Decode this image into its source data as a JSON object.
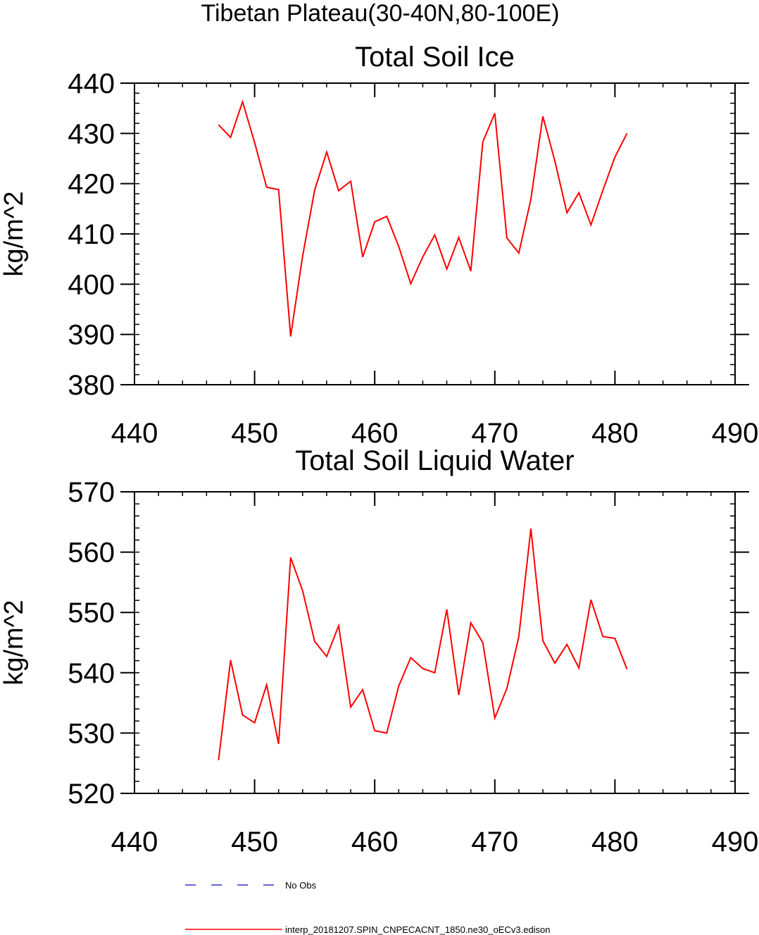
{
  "figure": {
    "suptitle": "Tibetan Plateau(30-40N,80-100E)"
  },
  "legend": {
    "entries": [
      {
        "label": "No Obs",
        "color": "#3333cc",
        "dash": true
      },
      {
        "label": "interp_20181207.SPIN_CNPECACNT_1850.ne30_oECv3.edison",
        "color": "#ff0000",
        "dash": false
      }
    ]
  },
  "chart_data": [
    {
      "type": "line",
      "title": "Total Soil Ice",
      "xlabel": "",
      "ylabel": "kg/m^2",
      "xlim": [
        440,
        490
      ],
      "ylim": [
        380,
        440
      ],
      "xticks": [
        440,
        450,
        460,
        470,
        480,
        490
      ],
      "yticks": [
        380,
        390,
        400,
        410,
        420,
        430,
        440
      ],
      "series": [
        {
          "name": "interp_20181207.SPIN_CNPECACNT_1850.ne30_oECv3.edison",
          "color": "#ff0000",
          "x": [
            447,
            448,
            449,
            450,
            451,
            452,
            453,
            454,
            455,
            456,
            457,
            458,
            459,
            460,
            461,
            462,
            463,
            464,
            465,
            466,
            467,
            468,
            469,
            470,
            471,
            472,
            473,
            474,
            475,
            476,
            477,
            478,
            479,
            480,
            481
          ],
          "y": [
            431.7,
            429.2,
            436.3,
            428.2,
            419.3,
            418.8,
            389.6,
            405.6,
            418.7,
            426.3,
            418.6,
            420.5,
            405.4,
            412.4,
            413.5,
            407.5,
            400.1,
            405.4,
            409.8,
            403.0,
            409.3,
            402.6,
            428.3,
            434.0,
            409.2,
            406.2,
            416.9,
            433.4,
            424.5,
            414.2,
            418.2,
            411.8,
            418.7,
            425.3,
            430.0
          ]
        }
      ]
    },
    {
      "type": "line",
      "title": "Total Soil Liquid Water",
      "xlabel": "",
      "ylabel": "kg/m^2",
      "xlim": [
        440,
        490
      ],
      "ylim": [
        520,
        570
      ],
      "xticks": [
        440,
        450,
        460,
        470,
        480,
        490
      ],
      "yticks": [
        520,
        530,
        540,
        550,
        560,
        570
      ],
      "series": [
        {
          "name": "interp_20181207.SPIN_CNPECACNT_1850.ne30_oECv3.edison",
          "color": "#ff0000",
          "x": [
            447,
            448,
            449,
            450,
            451,
            452,
            453,
            454,
            455,
            456,
            457,
            458,
            459,
            460,
            461,
            462,
            463,
            464,
            465,
            466,
            467,
            468,
            469,
            470,
            471,
            472,
            473,
            474,
            475,
            476,
            477,
            478,
            479,
            480,
            481
          ],
          "y": [
            525.5,
            542.1,
            533.0,
            531.7,
            538.0,
            528.2,
            559.1,
            553.6,
            545.2,
            542.7,
            547.8,
            534.3,
            537.2,
            530.4,
            530.0,
            537.8,
            542.5,
            540.7,
            540.0,
            550.5,
            536.3,
            548.3,
            545.0,
            532.5,
            537.4,
            546.0,
            563.9,
            545.3,
            541.6,
            544.7,
            540.8,
            552.1,
            546.0,
            545.7,
            540.6
          ]
        }
      ]
    }
  ]
}
